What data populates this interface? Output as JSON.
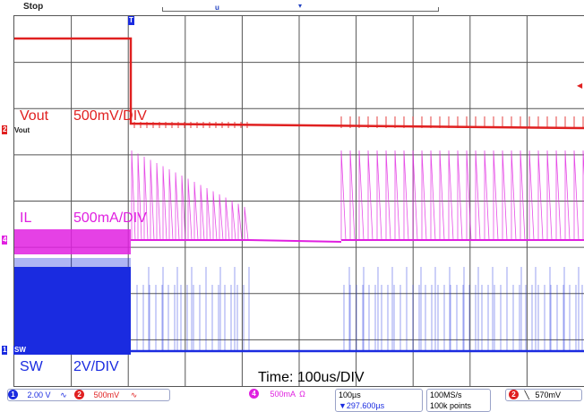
{
  "header": {
    "run_state": "Stop"
  },
  "labels": {
    "vout_name": "Vout",
    "vout_scale": "500mV/DIV",
    "il_name": "IL",
    "il_scale": "500mA/DIV",
    "sw_name": "SW",
    "sw_scale": "2V/DIV",
    "time": "Time: 100us/DIV",
    "vout_marker": "Vout",
    "sw_marker": "SW"
  },
  "statusbar": {
    "ch1_num": "1",
    "ch1_scale": "2.00 V",
    "ch2_num": "2",
    "ch2_scale": "500mV",
    "ch4_num": "4",
    "ch4_scale": "500mA",
    "timebase": "100µs",
    "trigger_pos": "▼297.600µs",
    "sample_rate": "100MS/s",
    "record_length": "100k points",
    "trig_ch": "2",
    "trig_level": "570mV"
  },
  "colors": {
    "ch1": "#1a2be0",
    "ch2": "#e02020",
    "ch4": "#e020e0",
    "grid": "#555555"
  }
}
